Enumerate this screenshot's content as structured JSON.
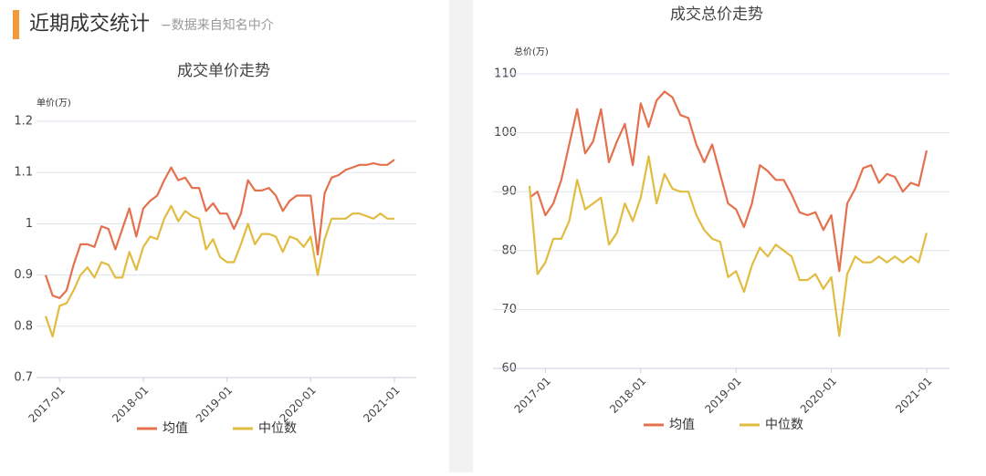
{
  "header": {
    "title": "近期成交统计",
    "subtitle": "−数据来自知名中介"
  },
  "chart_data": [
    {
      "type": "line",
      "title": "成交单价走势",
      "y_label": "单价(万)",
      "x": [
        "2016-11",
        "2016-12",
        "2017-01",
        "2017-02",
        "2017-03",
        "2017-04",
        "2017-05",
        "2017-06",
        "2017-07",
        "2017-08",
        "2017-09",
        "2017-10",
        "2017-11",
        "2017-12",
        "2018-01",
        "2018-02",
        "2018-03",
        "2018-04",
        "2018-05",
        "2018-06",
        "2018-07",
        "2018-08",
        "2018-09",
        "2018-10",
        "2018-11",
        "2018-12",
        "2019-01",
        "2019-02",
        "2019-03",
        "2019-04",
        "2019-05",
        "2019-06",
        "2019-07",
        "2019-08",
        "2019-09",
        "2019-10",
        "2019-11",
        "2019-12",
        "2020-01",
        "2020-02",
        "2020-03",
        "2020-04",
        "2020-05",
        "2020-06",
        "2020-07",
        "2020-08",
        "2020-09",
        "2020-10",
        "2020-11",
        "2020-12",
        "2021-01"
      ],
      "xticks": [
        "2017-01",
        "2018-01",
        "2019-01",
        "2020-01",
        "2021-01"
      ],
      "series": [
        {
          "name": "均值",
          "color": "#e4704d",
          "values": [
            0.9,
            0.86,
            0.855,
            0.87,
            0.92,
            0.96,
            0.96,
            0.955,
            0.995,
            0.99,
            0.95,
            0.99,
            1.03,
            0.975,
            1.03,
            1.045,
            1.055,
            1.085,
            1.11,
            1.085,
            1.09,
            1.07,
            1.07,
            1.025,
            1.04,
            1.02,
            1.02,
            0.99,
            1.02,
            1.085,
            1.065,
            1.065,
            1.07,
            1.055,
            1.025,
            1.045,
            1.055,
            1.055,
            1.055,
            0.94,
            1.06,
            1.09,
            1.095,
            1.105,
            1.11,
            1.115,
            1.115,
            1.118,
            1.115,
            1.115,
            1.125
          ]
        },
        {
          "name": "中位数",
          "color": "#e2bc40",
          "values": [
            0.82,
            0.78,
            0.84,
            0.845,
            0.87,
            0.9,
            0.915,
            0.895,
            0.925,
            0.92,
            0.895,
            0.895,
            0.945,
            0.91,
            0.955,
            0.975,
            0.97,
            1.01,
            1.035,
            1.005,
            1.025,
            1.015,
            1.01,
            0.95,
            0.97,
            0.935,
            0.925,
            0.925,
            0.96,
            1.0,
            0.96,
            0.98,
            0.98,
            0.975,
            0.945,
            0.975,
            0.97,
            0.955,
            0.975,
            0.9,
            0.97,
            1.01,
            1.01,
            1.01,
            1.02,
            1.02,
            1.015,
            1.01,
            1.02,
            1.01,
            1.01
          ]
        }
      ],
      "ylim": [
        0.7,
        1.2
      ],
      "yticks": [
        0.7,
        0.8,
        0.9,
        1,
        1.1,
        1.2
      ],
      "grid": true
    },
    {
      "type": "line",
      "title": "成交总价走势",
      "y_label": "总价(万)",
      "x": [
        "2016-11",
        "2016-12",
        "2017-01",
        "2017-02",
        "2017-03",
        "2017-04",
        "2017-05",
        "2017-06",
        "2017-07",
        "2017-08",
        "2017-09",
        "2017-10",
        "2017-11",
        "2017-12",
        "2018-01",
        "2018-02",
        "2018-03",
        "2018-04",
        "2018-05",
        "2018-06",
        "2018-07",
        "2018-08",
        "2018-09",
        "2018-10",
        "2018-11",
        "2018-12",
        "2019-01",
        "2019-02",
        "2019-03",
        "2019-04",
        "2019-05",
        "2019-06",
        "2019-07",
        "2019-08",
        "2019-09",
        "2019-10",
        "2019-11",
        "2019-12",
        "2020-01",
        "2020-02",
        "2020-03",
        "2020-04",
        "2020-05",
        "2020-06",
        "2020-07",
        "2020-08",
        "2020-09",
        "2020-10",
        "2020-11",
        "2020-12",
        "2021-01"
      ],
      "xticks": [
        "2017-01",
        "2018-01",
        "2019-01",
        "2020-01",
        "2021-01"
      ],
      "series": [
        {
          "name": "均值",
          "color": "#e4704d",
          "values": [
            89,
            90,
            86,
            88,
            92,
            98,
            104,
            96.5,
            98.5,
            104,
            95,
            98.5,
            101.5,
            94.5,
            105,
            101,
            105.5,
            107,
            106,
            103,
            102.5,
            98,
            95,
            98,
            93,
            88,
            87,
            84,
            88,
            94.5,
            93.5,
            92,
            92,
            89.5,
            86.5,
            86,
            86.5,
            83.5,
            86,
            76.5,
            88,
            90.5,
            94,
            94.5,
            91.5,
            93,
            92.5,
            90,
            91.5,
            91,
            97
          ]
        },
        {
          "name": "中位数",
          "color": "#e2bc40",
          "values": [
            91,
            76,
            78,
            82,
            82,
            85,
            92,
            87,
            88,
            89,
            81,
            83,
            88,
            85,
            89,
            96,
            88,
            93,
            90.5,
            90,
            90,
            86,
            83.5,
            82,
            81.5,
            75.5,
            76.5,
            73,
            77.5,
            80.5,
            79,
            81,
            80,
            79,
            75,
            75,
            76,
            73.5,
            75.5,
            65.5,
            76,
            79,
            78,
            78,
            79,
            78,
            79,
            78,
            79,
            78,
            83
          ]
        }
      ],
      "ylim": [
        60,
        110
      ],
      "yticks": [
        60,
        70,
        80,
        90,
        100,
        110
      ],
      "grid": true
    }
  ]
}
